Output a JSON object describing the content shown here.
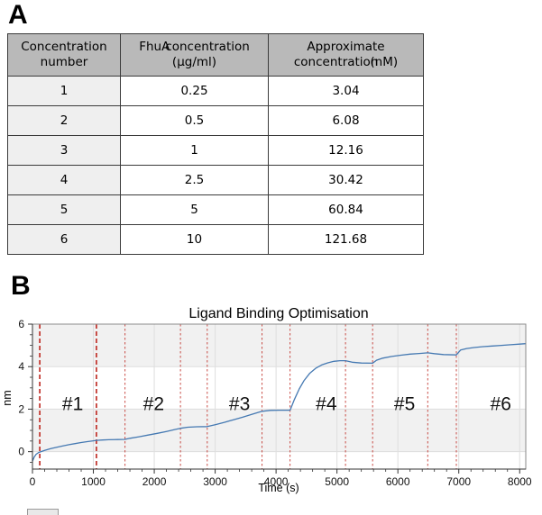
{
  "panel_a": {
    "label": "A",
    "table": {
      "headers": {
        "col1": {
          "line1": "Concentration",
          "line2": "number"
        },
        "col2": {
          "line1a": "FhuA",
          "line1b": "concentration",
          "line2": "(µg/ml)"
        },
        "col3": {
          "line1": "Approximate",
          "line2a": "concentration",
          "line2b": "(nM)"
        }
      },
      "rows": [
        [
          "1",
          "0.25",
          "3.04"
        ],
        [
          "2",
          "0.5",
          "6.08"
        ],
        [
          "3",
          "1",
          "12.16"
        ],
        [
          "4",
          "2.5",
          "30.42"
        ],
        [
          "5",
          "5",
          "60.84"
        ],
        [
          "6",
          "10",
          "121.68"
        ]
      ]
    }
  },
  "panel_b": {
    "label": "B",
    "chart_data": {
      "type": "line",
      "title": "Ligand Binding Optimisation",
      "xlabel": "Time (s)",
      "ylabel": "nm",
      "xlim": [
        0,
        8100
      ],
      "ylim": [
        -0.82,
        6.0
      ],
      "x_ticks": [
        0,
        1000,
        2000,
        3000,
        4000,
        5000,
        6000,
        7000,
        8000
      ],
      "y_ticks": [
        0,
        2,
        4,
        6
      ],
      "x_minor_step": 200,
      "y_minor_step": 0.5,
      "grid": true,
      "shaded_bands": [
        [
          0,
          2
        ],
        [
          4,
          6
        ]
      ],
      "section_labels": [
        {
          "text": "#1",
          "t": 660,
          "v": 2.25
        },
        {
          "text": "#2",
          "t": 1990,
          "v": 2.25
        },
        {
          "text": "#3",
          "t": 3400,
          "v": 2.25
        },
        {
          "text": "#4",
          "t": 4825,
          "v": 2.25
        },
        {
          "text": "#5",
          "t": 6110,
          "v": 2.25
        },
        {
          "text": "#6",
          "t": 7690,
          "v": 2.25
        }
      ],
      "red_dashed_lines": {
        "bold_t": [
          120,
          1050
        ],
        "thin_t": [
          1520,
          2430,
          2870,
          3770,
          4230,
          5140,
          5585,
          6490,
          6960
        ]
      },
      "series": [
        {
          "name": "sensor-trace",
          "points": [
            [
              0,
              -0.45
            ],
            [
              30,
              -0.25
            ],
            [
              60,
              -0.12
            ],
            [
              100,
              -0.04
            ],
            [
              120,
              -0.02
            ],
            [
              200,
              0.06
            ],
            [
              300,
              0.14
            ],
            [
              400,
              0.21
            ],
            [
              500,
              0.27
            ],
            [
              600,
              0.33
            ],
            [
              700,
              0.38
            ],
            [
              800,
              0.43
            ],
            [
              900,
              0.47
            ],
            [
              1000,
              0.51
            ],
            [
              1050,
              0.53
            ],
            [
              1150,
              0.55
            ],
            [
              1250,
              0.56
            ],
            [
              1400,
              0.57
            ],
            [
              1520,
              0.58
            ],
            [
              1600,
              0.63
            ],
            [
              1750,
              0.7
            ],
            [
              1900,
              0.78
            ],
            [
              2050,
              0.86
            ],
            [
              2200,
              0.95
            ],
            [
              2350,
              1.05
            ],
            [
              2430,
              1.1
            ],
            [
              2550,
              1.15
            ],
            [
              2700,
              1.17
            ],
            [
              2870,
              1.18
            ],
            [
              3000,
              1.27
            ],
            [
              3150,
              1.38
            ],
            [
              3300,
              1.5
            ],
            [
              3450,
              1.62
            ],
            [
              3600,
              1.75
            ],
            [
              3770,
              1.9
            ],
            [
              3900,
              1.94
            ],
            [
              4050,
              1.95
            ],
            [
              4230,
              1.95
            ],
            [
              4300,
              2.45
            ],
            [
              4380,
              2.95
            ],
            [
              4460,
              3.35
            ],
            [
              4550,
              3.68
            ],
            [
              4650,
              3.92
            ],
            [
              4750,
              4.08
            ],
            [
              4850,
              4.18
            ],
            [
              4950,
              4.25
            ],
            [
              5050,
              4.28
            ],
            [
              5140,
              4.28
            ],
            [
              5250,
              4.21
            ],
            [
              5400,
              4.17
            ],
            [
              5585,
              4.16
            ],
            [
              5650,
              4.3
            ],
            [
              5750,
              4.4
            ],
            [
              5900,
              4.48
            ],
            [
              6050,
              4.54
            ],
            [
              6200,
              4.59
            ],
            [
              6350,
              4.62
            ],
            [
              6490,
              4.65
            ],
            [
              6600,
              4.61
            ],
            [
              6750,
              4.57
            ],
            [
              6960,
              4.55
            ],
            [
              7030,
              4.78
            ],
            [
              7130,
              4.85
            ],
            [
              7250,
              4.9
            ],
            [
              7400,
              4.94
            ],
            [
              7550,
              4.97
            ],
            [
              7700,
              5.0
            ],
            [
              7850,
              5.03
            ],
            [
              8000,
              5.06
            ],
            [
              8100,
              5.08
            ]
          ]
        }
      ]
    }
  },
  "colors": {
    "table_header_bg": "#b9b9b9",
    "table_rowhead_bg": "#efefef",
    "table_border": "#3a3a3a",
    "trace_blue": "#4579b2",
    "red_line": "#c43c35",
    "band_gray": "#f1f1f1",
    "grid_gray": "#dedede",
    "frame_gray": "#8a8a8a",
    "tick_dark": "#333333"
  }
}
